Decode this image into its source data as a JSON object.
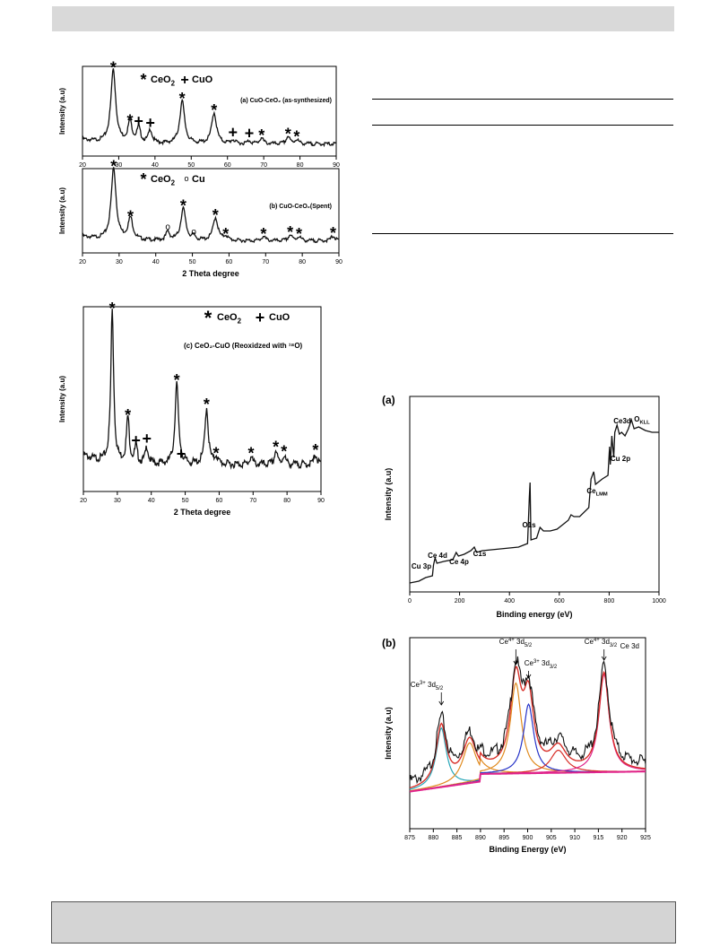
{
  "colors": {
    "band": "#d9d9d9",
    "trace": "#111111",
    "fit_orange": "#e08a1e",
    "fit_blue": "#2633c8",
    "fit_cyan": "#27a6b8",
    "fit_magenta": "#e0248c",
    "fit_red": "#d8302a",
    "fit_gray": "#888888"
  },
  "chart_data": [
    {
      "type": "line",
      "id": "xrd-a",
      "xlim": [
        20,
        90
      ],
      "xticks": [
        "20",
        "30",
        "40",
        "50",
        "60",
        "70",
        "80",
        "90"
      ],
      "ylabel": "Intensity (a.u)",
      "xlabel": "",
      "legend": [
        {
          "marker": "*",
          "label": "CeO",
          "sub": "2"
        },
        {
          "marker": "+",
          "label": "CuO",
          "sub": ""
        }
      ],
      "annotation": "(a) CuO-CeO₂ (as-synthesized)",
      "peaks": [
        {
          "x": 28.5,
          "h": 1.0,
          "w": 0.8,
          "marker": "*"
        },
        {
          "x": 33.1,
          "h": 0.28,
          "w": 0.7,
          "marker": "*"
        },
        {
          "x": 35.5,
          "h": 0.2,
          "w": 0.6,
          "marker": "+"
        },
        {
          "x": 38.7,
          "h": 0.18,
          "w": 0.6,
          "marker": "+"
        },
        {
          "x": 47.5,
          "h": 0.58,
          "w": 0.8,
          "marker": "*"
        },
        {
          "x": 56.3,
          "h": 0.42,
          "w": 0.8,
          "marker": "*"
        },
        {
          "x": 61.5,
          "h": 0.05,
          "w": 0.6,
          "marker": "+"
        },
        {
          "x": 66.0,
          "h": 0.04,
          "w": 0.6,
          "marker": "+"
        },
        {
          "x": 69.4,
          "h": 0.08,
          "w": 0.6,
          "marker": "*"
        },
        {
          "x": 76.7,
          "h": 0.1,
          "w": 0.6,
          "marker": "*"
        },
        {
          "x": 79.1,
          "h": 0.06,
          "w": 0.6,
          "marker": "*"
        }
      ]
    },
    {
      "type": "line",
      "id": "xrd-b",
      "xlim": [
        20,
        90
      ],
      "xticks": [
        "20",
        "30",
        "40",
        "50",
        "60",
        "70",
        "80",
        "90"
      ],
      "ylabel": "Intensity (a.u)",
      "xlabel": "2 Theta degree",
      "legend": [
        {
          "marker": "*",
          "label": "CeO",
          "sub": "2"
        },
        {
          "marker": "o",
          "label": "Cu",
          "sub": ""
        }
      ],
      "annotation": "(b) CuO-CeO₂(Spent)",
      "peaks": [
        {
          "x": 28.5,
          "h": 1.0,
          "w": 0.8,
          "marker": "*"
        },
        {
          "x": 33.1,
          "h": 0.3,
          "w": 0.8,
          "marker": "*"
        },
        {
          "x": 43.3,
          "h": 0.12,
          "w": 0.6,
          "marker": "o"
        },
        {
          "x": 47.5,
          "h": 0.45,
          "w": 0.8,
          "marker": "*"
        },
        {
          "x": 50.4,
          "h": 0.05,
          "w": 0.6,
          "marker": "o"
        },
        {
          "x": 56.3,
          "h": 0.32,
          "w": 0.8,
          "marker": "*"
        },
        {
          "x": 59.1,
          "h": 0.06,
          "w": 0.6,
          "marker": "*"
        },
        {
          "x": 69.4,
          "h": 0.06,
          "w": 0.6,
          "marker": "*"
        },
        {
          "x": 76.7,
          "h": 0.08,
          "w": 0.6,
          "marker": "*"
        },
        {
          "x": 79.1,
          "h": 0.06,
          "w": 0.6,
          "marker": "*"
        },
        {
          "x": 88.4,
          "h": 0.07,
          "w": 0.6,
          "marker": "*"
        }
      ]
    },
    {
      "type": "line",
      "id": "xrd-c",
      "xlim": [
        20,
        90
      ],
      "xticks": [
        "20",
        "30",
        "40",
        "50",
        "60",
        "70",
        "80",
        "90"
      ],
      "ylabel": "Intensity (a.u)",
      "xlabel": "2 Theta degree",
      "legend": [
        {
          "marker": "*",
          "label": "CeO",
          "sub": "2"
        },
        {
          "marker": "+",
          "label": "CuO",
          "sub": ""
        }
      ],
      "annotation": "(c) CeO₂-CuO (Reoxidzed with ¹⁸O)",
      "peaks": [
        {
          "x": 28.5,
          "h": 1.0,
          "w": 0.5,
          "marker": "*"
        },
        {
          "x": 33.1,
          "h": 0.3,
          "w": 0.5,
          "marker": "*"
        },
        {
          "x": 35.5,
          "h": 0.1,
          "w": 0.5,
          "marker": "+"
        },
        {
          "x": 38.7,
          "h": 0.11,
          "w": 0.5,
          "marker": "+"
        },
        {
          "x": 47.5,
          "h": 0.53,
          "w": 0.6,
          "marker": "*"
        },
        {
          "x": 48.8,
          "h": 0.01,
          "w": 0.5,
          "marker": "+"
        },
        {
          "x": 56.3,
          "h": 0.37,
          "w": 0.6,
          "marker": "*"
        },
        {
          "x": 59.1,
          "h": 0.05,
          "w": 0.5,
          "marker": "*"
        },
        {
          "x": 69.4,
          "h": 0.05,
          "w": 0.5,
          "marker": "*"
        },
        {
          "x": 76.7,
          "h": 0.09,
          "w": 0.5,
          "marker": "*"
        },
        {
          "x": 79.1,
          "h": 0.06,
          "w": 0.5,
          "marker": "*"
        },
        {
          "x": 88.4,
          "h": 0.07,
          "w": 0.5,
          "marker": "*"
        }
      ]
    },
    {
      "type": "line",
      "id": "xps-survey",
      "panel_label": "(a)",
      "xlim": [
        0,
        1100
      ],
      "xticks": [
        "0",
        "200",
        "400",
        "600",
        "800",
        "1000"
      ],
      "xlabel": "Binding energy (eV)",
      "ylabel": "Intensity (a.u)",
      "points": [
        [
          0,
          0.02
        ],
        [
          40,
          0.03
        ],
        [
          70,
          0.05
        ],
        [
          100,
          0.06
        ],
        [
          105,
          0.12
        ],
        [
          112,
          0.16
        ],
        [
          120,
          0.13
        ],
        [
          150,
          0.14
        ],
        [
          190,
          0.15
        ],
        [
          205,
          0.19
        ],
        [
          215,
          0.17
        ],
        [
          240,
          0.18
        ],
        [
          270,
          0.2
        ],
        [
          285,
          0.22
        ],
        [
          295,
          0.19
        ],
        [
          320,
          0.2
        ],
        [
          400,
          0.21
        ],
        [
          480,
          0.22
        ],
        [
          520,
          0.24
        ],
        [
          528,
          0.5
        ],
        [
          531,
          0.58
        ],
        [
          535,
          0.26
        ],
        [
          560,
          0.27
        ],
        [
          575,
          0.33
        ],
        [
          590,
          0.31
        ],
        [
          620,
          0.31
        ],
        [
          650,
          0.32
        ],
        [
          680,
          0.35
        ],
        [
          700,
          0.37
        ],
        [
          712,
          0.4
        ],
        [
          725,
          0.39
        ],
        [
          750,
          0.39
        ],
        [
          790,
          0.44
        ],
        [
          800,
          0.6
        ],
        [
          812,
          0.64
        ],
        [
          820,
          0.57
        ],
        [
          850,
          0.6
        ],
        [
          875,
          0.62
        ],
        [
          882,
          0.78
        ],
        [
          885,
          0.68
        ],
        [
          892,
          0.84
        ],
        [
          900,
          0.72
        ],
        [
          905,
          0.86
        ],
        [
          915,
          0.9
        ],
        [
          925,
          0.85
        ],
        [
          935,
          0.86
        ],
        [
          950,
          0.84
        ],
        [
          965,
          0.88
        ],
        [
          978,
          0.93
        ],
        [
          990,
          0.88
        ],
        [
          1010,
          0.89
        ],
        [
          1040,
          0.87
        ],
        [
          1070,
          0.86
        ],
        [
          1100,
          0.86
        ]
      ],
      "labels": [
        {
          "x": 70,
          "text": "Cu 3p",
          "sub": ""
        },
        {
          "x": 118,
          "text": "Ce 4d",
          "sub": ""
        },
        {
          "x": 212,
          "text": "Ce 4p",
          "sub": ""
        },
        {
          "x": 290,
          "text": "C1s",
          "sub": ""
        },
        {
          "x": 531,
          "text": "O1s",
          "sub": ""
        },
        {
          "x": 805,
          "text": "Ce",
          "sub": "LMM"
        },
        {
          "x": 885,
          "text": "Cu 2p",
          "sub": ""
        },
        {
          "x": 905,
          "text": "Ce3d",
          "sub": ""
        },
        {
          "x": 978,
          "text": "O",
          "sub": "KLL"
        }
      ]
    },
    {
      "type": "line",
      "id": "xps-ce3d",
      "panel_label": "(b)",
      "title": "Ce 3d",
      "xlim": [
        875,
        925
      ],
      "xticks": [
        "875",
        "880",
        "885",
        "890",
        "895",
        "900",
        "905",
        "910",
        "915",
        "920",
        "925"
      ],
      "xlabel": "Binding Energy (eV)",
      "ylabel": "Intensity (a.u)",
      "peaks": [
        {
          "x": 881.7,
          "h": 0.47,
          "w": 1.3,
          "color": "fit_cyan"
        },
        {
          "x": 887.7,
          "h": 0.32,
          "w": 1.8,
          "color": "fit_orange"
        },
        {
          "x": 897.5,
          "h": 0.72,
          "w": 1.4,
          "color": "fit_orange"
        },
        {
          "x": 900.2,
          "h": 0.55,
          "w": 1.3,
          "color": "fit_blue"
        },
        {
          "x": 906.5,
          "h": 0.18,
          "w": 2.0,
          "color": "fit_red"
        },
        {
          "x": 916.2,
          "h": 0.78,
          "w": 1.3,
          "color": "fit_magenta"
        }
      ],
      "annotations": [
        {
          "x": 881.7,
          "text": "Ce",
          "sup": "3+",
          "rest": " 3d",
          "sub": "5/2"
        },
        {
          "x": 897.5,
          "text": "Ce",
          "sup": "4+",
          "rest": " 3d",
          "sub": "5/2"
        },
        {
          "x": 900.2,
          "text": "Ce",
          "sup": "3+",
          "rest": " 3d",
          "sub": "3/2"
        },
        {
          "x": 916.2,
          "text": "Ce",
          "sup": "4+",
          "rest": " 3d",
          "sub": "3/2"
        }
      ]
    }
  ]
}
